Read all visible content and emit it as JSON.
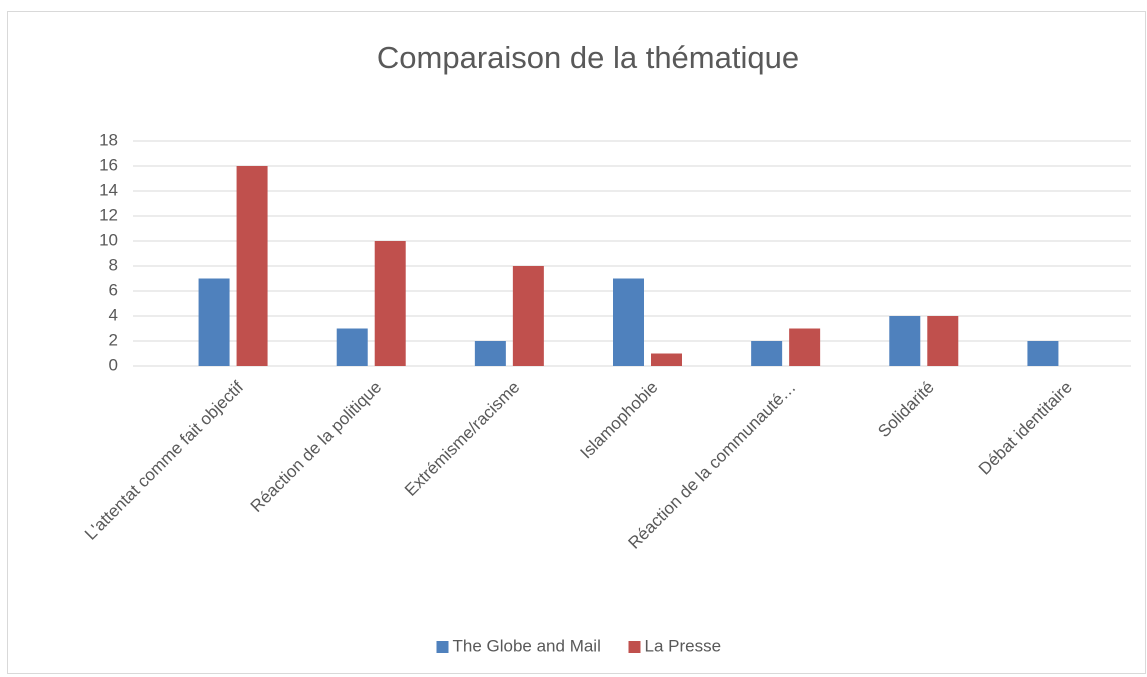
{
  "chart_data": {
    "type": "bar",
    "title": "Comparaison de la thématique",
    "categories": [
      "L'attentat comme fait objectif",
      "Réaction de la politique",
      "Extrémisme/racisme",
      "Islamophobie",
      "Réaction de la communauté…",
      "Solidarité",
      "Débat identitaire"
    ],
    "series": [
      {
        "name": "The Globe and Mail",
        "color": "#4f81bd",
        "values": [
          7,
          3,
          2,
          7,
          2,
          4,
          2
        ]
      },
      {
        "name": "La Presse",
        "color": "#c0504d",
        "values": [
          16,
          10,
          8,
          1,
          3,
          4,
          0
        ]
      }
    ],
    "ylim": [
      0,
      18
    ],
    "yticks": [
      0,
      2,
      4,
      6,
      8,
      10,
      12,
      14,
      16,
      18
    ],
    "grid": true,
    "legend": "bottom"
  }
}
